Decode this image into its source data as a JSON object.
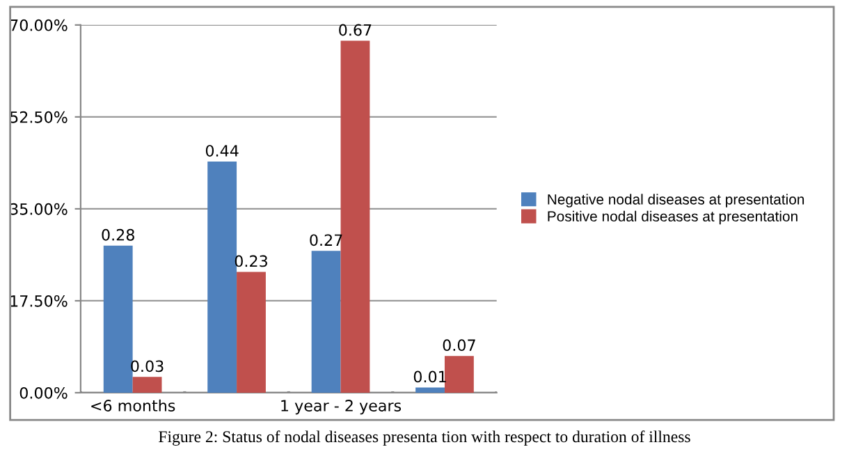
{
  "chart_data": {
    "type": "bar",
    "categories": [
      "<6 months",
      null,
      "1 year - 2 years",
      null
    ],
    "series": [
      {
        "name": "Negative nodal diseases at presentation",
        "color": "#4f81bd",
        "values": [
          0.28,
          0.44,
          0.27,
          0.01
        ]
      },
      {
        "name": "Positive nodal diseases at presentation",
        "color": "#c0504d",
        "values": [
          0.03,
          0.23,
          0.67,
          0.07
        ]
      }
    ],
    "data_labels": true,
    "ylim": [
      0,
      0.7
    ],
    "yticks": [
      {
        "value": 0,
        "label": "0.00%"
      },
      {
        "value": 0.175,
        "label": "17.50%"
      },
      {
        "value": 0.35,
        "label": "35.00%"
      },
      {
        "value": 0.525,
        "label": "52.50%"
      },
      {
        "value": 0.7,
        "label": "70.00%"
      }
    ],
    "grid": "y",
    "legend": "right",
    "annotations": [
      "Figure 2: Status of nodal diseases presenta tion with respect to duration of illness"
    ]
  }
}
